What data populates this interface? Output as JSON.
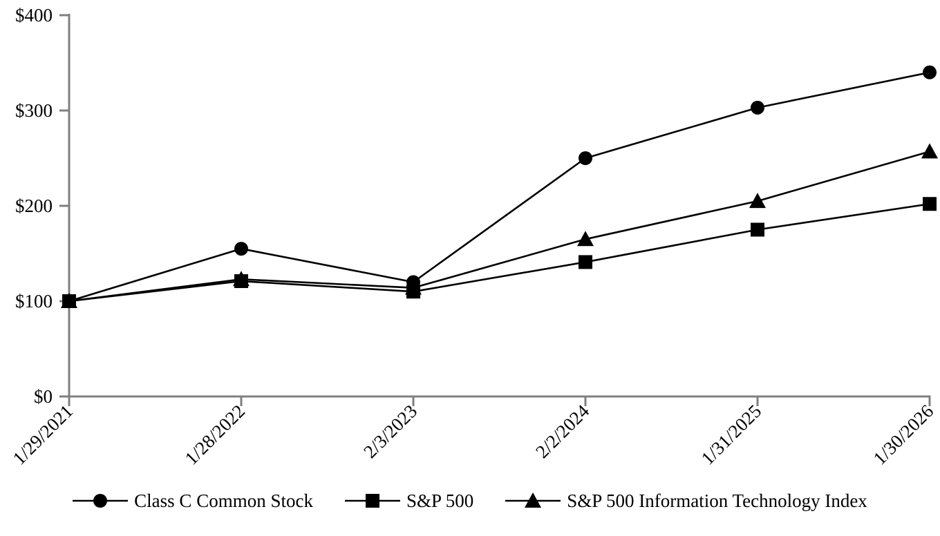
{
  "page": {
    "background": "#ffffff"
  },
  "chart_data": {
    "type": "line",
    "title": "",
    "x_labels": [
      "1/29/2021",
      "1/28/2022",
      "2/3/2023",
      "2/2/2024",
      "1/31/2025",
      "1/30/2026"
    ],
    "y_tick_labels": [
      "$0",
      "$100",
      "$200",
      "$300",
      "$400"
    ],
    "y_tick_values": [
      0,
      100,
      200,
      300,
      400
    ],
    "ylim": [
      0,
      400
    ],
    "grid": false,
    "legend_position": "bottom",
    "axis_color": "#7f7f7f",
    "series_color": "#000000",
    "series": [
      {
        "name": "Class C Common Stock",
        "marker": "circle",
        "color": "#000000",
        "values": [
          100,
          155,
          120,
          250,
          303,
          340
        ]
      },
      {
        "name": "S&P 500",
        "marker": "square",
        "color": "#000000",
        "values": [
          100,
          121,
          110,
          141,
          175,
          202
        ]
      },
      {
        "name": "S&P 500 Information Technology Index",
        "marker": "triangle",
        "color": "#000000",
        "values": [
          100,
          123,
          114,
          165,
          205,
          257
        ]
      }
    ]
  }
}
